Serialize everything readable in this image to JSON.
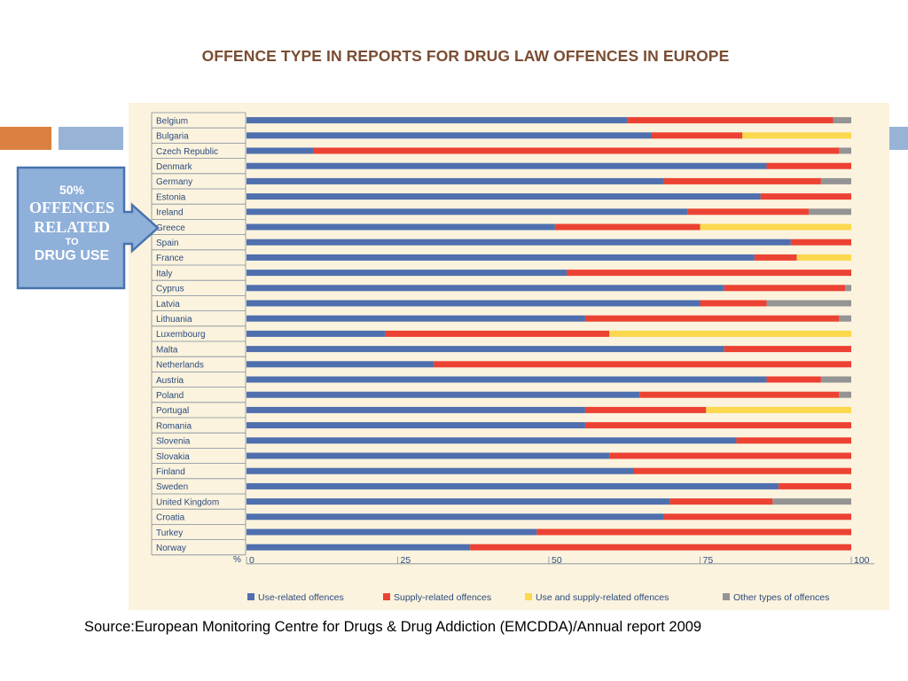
{
  "title": "OFFENCE TYPE IN REPORTS FOR DRUG LAW OFFENCES IN EUROPE",
  "callout": {
    "line1": "50%",
    "line2": "OFFENCES",
    "line3": "RELATED",
    "line4": "TO",
    "line5": "DRUG USE"
  },
  "source": "Source:European Monitoring Centre for Drugs & Drug Addiction (EMCDDA)/Annual report 2009",
  "colors": {
    "use": "#4f6fae",
    "supply": "#ec4233",
    "use_supply": "#fbd84d",
    "other": "#949494",
    "title": "#7b4d32",
    "callout_fill": "#8fb0d9",
    "callout_border": "#4773b0",
    "chart_background": "#fbf3dd"
  },
  "chart_data": {
    "type": "bar",
    "orientation": "horizontal",
    "stacked": true,
    "normalized": true,
    "categories": [
      "Belgium",
      "Bulgaria",
      "Czech Republic",
      "Denmark",
      "Germany",
      "Estonia",
      "Ireland",
      "Greece",
      "Spain",
      "France",
      "Italy",
      "Cyprus",
      "Latvia",
      "Lithuania",
      "Luxembourg",
      "Malta",
      "Netherlands",
      "Austria",
      "Poland",
      "Portugal",
      "Romania",
      "Slovenia",
      "Slovakia",
      "Finland",
      "Sweden",
      "United Kingdom",
      "Croatia",
      "Turkey",
      "Norway"
    ],
    "series": [
      {
        "name": "Use-related offences",
        "color": "#4f6fae",
        "values": [
          63,
          67,
          11,
          86,
          69,
          85,
          73,
          51,
          90,
          84,
          53,
          79,
          75,
          56,
          23,
          79,
          31,
          86,
          65,
          56,
          56,
          81,
          60,
          64,
          88,
          70,
          69,
          48,
          37
        ]
      },
      {
        "name": "Supply-related offences",
        "color": "#ec4233",
        "values": [
          34,
          15,
          87,
          14,
          26,
          15,
          20,
          24,
          10,
          7,
          47,
          20,
          11,
          42,
          37,
          21,
          69,
          9,
          33,
          20,
          44,
          19,
          40,
          36,
          12,
          17,
          31,
          52,
          63
        ]
      },
      {
        "name": "Use and supply-related offences",
        "color": "#fbd84d",
        "values": [
          0,
          18,
          0,
          0,
          0,
          0,
          0,
          25,
          0,
          9,
          0,
          0,
          0,
          0,
          40,
          0,
          0,
          0,
          0,
          24,
          0,
          0,
          0,
          0,
          0,
          0,
          0,
          0,
          0
        ]
      },
      {
        "name": "Other types of offences",
        "color": "#949494",
        "values": [
          3,
          0,
          2,
          0,
          5,
          0,
          7,
          0,
          0,
          0,
          0,
          1,
          14,
          2,
          0,
          0,
          0,
          5,
          2,
          0,
          0,
          0,
          0,
          0,
          0,
          13,
          0,
          0,
          0
        ]
      }
    ],
    "x_unit": "%",
    "x_ticks": [
      "0",
      "25",
      "50",
      "75",
      "100"
    ],
    "xlim": [
      0,
      100
    ],
    "legend_position": "bottom",
    "grid": false
  }
}
